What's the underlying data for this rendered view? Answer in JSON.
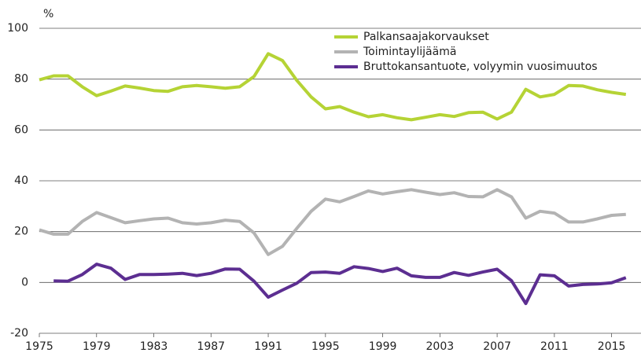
{
  "chart_data": {
    "type": "line",
    "y_unit": "%",
    "x": [
      1975,
      1976,
      1977,
      1978,
      1979,
      1980,
      1981,
      1982,
      1983,
      1984,
      1985,
      1986,
      1987,
      1988,
      1989,
      1990,
      1991,
      1992,
      1993,
      1994,
      1995,
      1996,
      1997,
      1998,
      1999,
      2000,
      2001,
      2002,
      2003,
      2004,
      2005,
      2006,
      2007,
      2008,
      2009,
      2010,
      2011,
      2012,
      2013,
      2014,
      2015,
      2016
    ],
    "series": [
      {
        "name": "Palkansaajakorvaukset",
        "color": "#b5d335",
        "values": [
          79.7,
          81.3,
          81.3,
          77,
          73.5,
          75.3,
          77.3,
          76.5,
          75.5,
          75.2,
          77,
          77.5,
          77,
          76.4,
          77,
          81,
          90,
          87.3,
          79.5,
          73,
          68.3,
          69.2,
          67,
          65.2,
          66,
          64.8,
          64,
          65,
          66,
          65.3,
          66.8,
          67,
          64.3,
          67,
          76,
          73,
          74,
          77.5,
          77.3,
          75.8,
          74.8,
          74
        ]
      },
      {
        "name": "Toimintaylijäämä",
        "color": "#b3b3b3",
        "values": [
          20.7,
          19,
          19,
          24,
          27.5,
          25.5,
          23.5,
          24.3,
          25,
          25.3,
          23.5,
          23,
          23.5,
          24.5,
          24,
          19.5,
          11,
          14.2,
          21.3,
          28,
          32.8,
          31.7,
          33.8,
          36,
          34.8,
          35.7,
          36.5,
          35.5,
          34.6,
          35.3,
          33.8,
          33.7,
          36.5,
          33.7,
          25.3,
          28,
          27.3,
          23.8,
          23.8,
          25,
          26.4,
          26.8
        ]
      },
      {
        "name": "Bruttokansantuote, volyymin vuosimuutos",
        "color": "#5c2e91",
        "values": [
          null,
          0.6,
          0.5,
          3.1,
          7.2,
          5.6,
          1.2,
          3.1,
          3.1,
          3.3,
          3.6,
          2.7,
          3.6,
          5.3,
          5.2,
          0.5,
          -5.8,
          -3,
          -0.3,
          3.9,
          4.1,
          3.6,
          6.2,
          5.5,
          4.3,
          5.6,
          2.6,
          2,
          2,
          3.9,
          2.8,
          4.1,
          5.2,
          0.7,
          -8.3,
          3,
          2.6,
          -1.4,
          -0.8,
          -0.6,
          -0.1,
          1.9
        ]
      }
    ],
    "xlim": [
      1975,
      2017
    ],
    "xticks": [
      1975,
      1979,
      1983,
      1987,
      1991,
      1995,
      1999,
      2003,
      2007,
      2011,
      2015
    ],
    "ylim": [
      -20,
      100
    ],
    "yticks": [
      -20,
      0,
      20,
      40,
      60,
      80,
      100
    ],
    "grid": true,
    "legend": "top-right"
  }
}
